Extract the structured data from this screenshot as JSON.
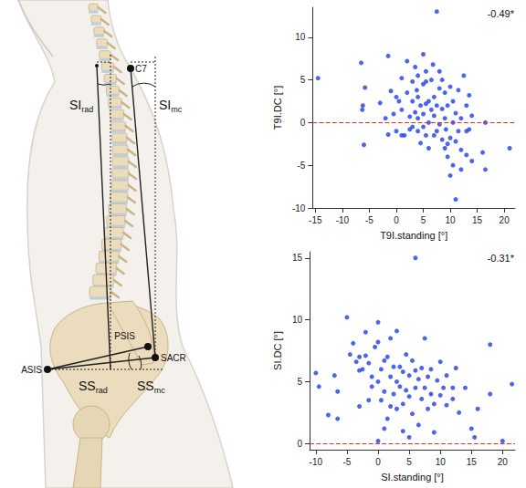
{
  "diagram": {
    "points": [
      "C7",
      "PSIS",
      "SACR",
      "ASIS"
    ],
    "angles": [
      {
        "text": "SI",
        "sub": "rad"
      },
      {
        "text": "SI",
        "sub": "mc"
      },
      {
        "text": "SS",
        "sub": "rad"
      },
      {
        "text": "SS",
        "sub": "mc"
      }
    ]
  },
  "chart_data": [
    {
      "type": "scatter",
      "annotation": "-0.49*",
      "x_label": "T9I.standing [°]",
      "y_label": "T9I.DC [°]",
      "color": "#1f3fe6",
      "marker": "circle",
      "xlim": [
        -15.5,
        22
      ],
      "xticks": [
        -15,
        -10,
        -5,
        0,
        5,
        10,
        15,
        20
      ],
      "ylim": [
        -10,
        13.5
      ],
      "yticks": [
        -10,
        -5,
        0,
        5,
        10
      ],
      "reference_line": {
        "y": 0,
        "color": "#e03030",
        "line_style": "dashed"
      },
      "x": [
        -14.5,
        -6.5,
        -6.2,
        -6,
        -5.8,
        -6.3,
        -3,
        -2,
        -1.5,
        -1,
        -0.5,
        0,
        0.5,
        0,
        -1.5,
        1,
        1,
        1.5,
        2,
        2,
        2.5,
        2.5,
        3,
        3,
        3,
        3.5,
        3.5,
        4,
        4,
        4,
        4,
        4.5,
        4.5,
        5,
        5,
        5,
        5,
        5.5,
        5.5,
        5.5,
        5.5,
        6,
        6,
        6,
        6.5,
        6.5,
        7,
        7,
        7,
        7.5,
        7.5,
        7.5,
        8,
        8,
        8,
        8.5,
        8.5,
        8.5,
        9,
        9,
        9,
        9.5,
        9.5,
        9.5,
        10,
        10,
        10,
        10.5,
        10.5,
        10.5,
        11,
        11,
        11,
        11.5,
        11.5,
        12,
        12,
        12,
        12.5,
        13,
        13,
        13,
        13.5,
        13.5,
        14,
        14,
        16,
        16.5,
        16.5,
        21,
        1,
        3.8,
        6.8,
        9.2
      ],
      "values": [
        5.2,
        7,
        2,
        -2.6,
        4.1,
        1.5,
        2.3,
        0.5,
        7.8,
        3.7,
        1,
        3,
        2.5,
        -1,
        -1.4,
        1.5,
        5.2,
        -1.5,
        3.5,
        7.2,
        0.7,
        -0.8,
        4.8,
        2.5,
        -0.5,
        1.2,
        6.5,
        3,
        -1,
        5.5,
        0.5,
        2,
        -2.4,
        8,
        1,
        -0.5,
        4.5,
        2.2,
        -1.5,
        6,
        4.8,
        0,
        2.5,
        -3,
        1.5,
        5,
        -1.5,
        3,
        0.8,
        13,
        -1,
        2,
        4,
        -0.2,
        6,
        -2,
        1.6,
        5,
        -3,
        3.5,
        0.5,
        -2.5,
        -4,
        2,
        -1.8,
        4.2,
        -6.2,
        0,
        -5,
        2.5,
        -9,
        -2.2,
        1.1,
        -1,
        3.8,
        -3.2,
        0.5,
        -5.5,
        5.5,
        -1,
        2,
        -3.8,
        -0.8,
        3.2,
        -4.5,
        0.8,
        -3.5,
        0,
        -5.5,
        -3,
        -1.5,
        3.8,
        6.8,
        -0.8
      ]
    },
    {
      "type": "scatter",
      "annotation": "-0.31*",
      "x_label": "SI.standing [°]",
      "y_label": "SI.DC [°]",
      "color": "#1f3fe6",
      "marker": "circle",
      "xlim": [
        -11,
        22
      ],
      "xticks": [
        -10,
        -5,
        0,
        5,
        10,
        15,
        20
      ],
      "ylim": [
        -0.5,
        15.5
      ],
      "yticks": [
        0,
        5,
        10,
        15
      ],
      "reference_line": {
        "y": 0,
        "color": "#e03030",
        "line_style": "dashed"
      },
      "x": [
        -10,
        -9.5,
        -7,
        -6.5,
        -6.5,
        -5,
        -4.5,
        -4,
        -3.5,
        -3,
        -3,
        -2.5,
        -2,
        -2,
        -1.5,
        -1.5,
        -1,
        -1,
        -0.5,
        0,
        0,
        0,
        0,
        0.5,
        0.5,
        1,
        1,
        1.5,
        1.5,
        2,
        2,
        2,
        2.5,
        2.5,
        3,
        3,
        3,
        3.5,
        3.5,
        4,
        4,
        4,
        4.5,
        4.5,
        5,
        5,
        5,
        5.5,
        5.5,
        6,
        6,
        6,
        6.5,
        6.5,
        7,
        7,
        7.5,
        7.5,
        8,
        8,
        8.5,
        8.5,
        9,
        9,
        9.5,
        10,
        10,
        10.5,
        11,
        11,
        12,
        12,
        12.5,
        13,
        14,
        15,
        15.5,
        16,
        18,
        18,
        20,
        21.5,
        -8,
        -3,
        1
      ],
      "values": [
        5.7,
        4.6,
        5.5,
        4.2,
        2,
        10.2,
        7.2,
        8.1,
        6.6,
        5.9,
        7,
        6,
        7.1,
        9,
        6.5,
        3.5,
        4.6,
        5.4,
        7.8,
        9.8,
        5,
        0.2,
        8.2,
        6,
        3.5,
        6.7,
        4.2,
        2,
        7,
        5.4,
        3,
        8.5,
        4,
        6.2,
        5,
        2.8,
        9.1,
        4.6,
        6.2,
        3.2,
        1,
        5.8,
        7.2,
        4.3,
        5.5,
        0.5,
        3.8,
        6.7,
        2.4,
        4.5,
        15,
        5.9,
        1.5,
        5.2,
        3.6,
        6.1,
        8.5,
        4.5,
        2.8,
        5.4,
        6,
        4,
        0.9,
        3.2,
        5.1,
        3.9,
        6.6,
        4.5,
        3.1,
        5.5,
        3.6,
        4.5,
        6.1,
        2.5,
        4.5,
        1.2,
        0.5,
        2.8,
        8,
        4,
        0.2,
        4.8,
        2.3,
        3,
        1.2
      ]
    }
  ]
}
